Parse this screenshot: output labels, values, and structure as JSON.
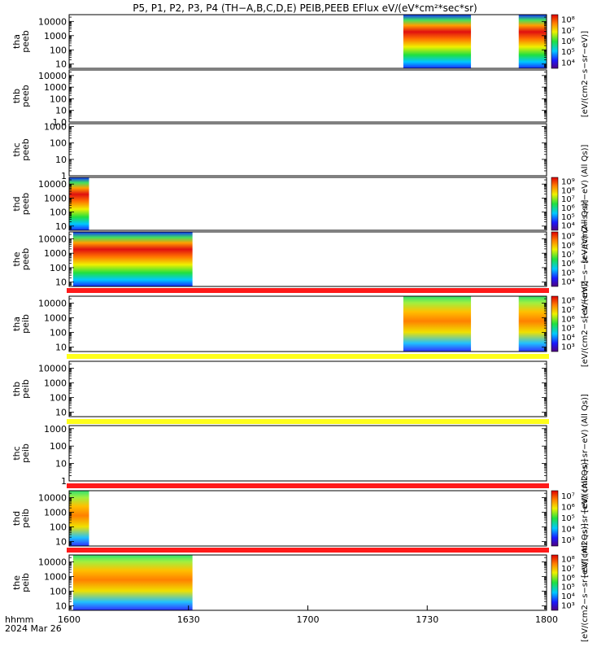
{
  "title": "P5, P1, P2, P3, P4 (TH−A,B,C,D,E) PEIB,PEEB EFlux eV/(eV*cm²*sec*sr)",
  "footer": {
    "hhmm": "hhmm",
    "date": "2024 Mar 26"
  },
  "colors": {
    "flag_red": "#ff1a1a",
    "flag_yellow": "#ffff1a"
  },
  "chart_data": {
    "type": "heatmap",
    "x_tick_labels": [
      "1600",
      "1630",
      "1700",
      "1730",
      "1800"
    ],
    "x_range": [
      "16:00",
      "18:00"
    ],
    "panels": [
      {
        "ylabel": [
          "tha",
          "peeb"
        ],
        "y_ticks": [
          "10",
          "100",
          "1000",
          "10000"
        ],
        "ylim": [
          5,
          30000
        ],
        "coverage": [
          [
            "17:24",
            "17:41"
          ],
          [
            "17:53",
            "18:00"
          ]
        ],
        "colorbar": {
          "labels": [
            "10⁴",
            "10⁵",
            "10⁶",
            "10⁷",
            "10⁸"
          ],
          "title": "[eV/(cm2−s−sr−eV)]"
        }
      },
      {
        "ylabel": [
          "thb",
          "peeb"
        ],
        "y_ticks": [
          "1.0",
          "10",
          "100",
          "1000",
          "10000"
        ],
        "ylim": [
          1,
          30000
        ],
        "coverage": []
      },
      {
        "ylabel": [
          "thc",
          "peeb"
        ],
        "y_ticks": [
          "1",
          "10",
          "100",
          "1000"
        ],
        "ylim": [
          1,
          1500
        ],
        "coverage": []
      },
      {
        "ylabel": [
          "thd",
          "peeb"
        ],
        "y_ticks": [
          "10",
          "100",
          "1000",
          "10000"
        ],
        "ylim": [
          5,
          30000
        ],
        "coverage": [
          [
            "16:00",
            "16:05"
          ]
        ],
        "colorbar": {
          "labels": [
            "10⁴",
            "10⁵",
            "10⁶",
            "10⁷",
            "10⁸",
            "10⁹"
          ],
          "title": "[eV/(cm2−s−sr−eV) (All Qs)]"
        }
      },
      {
        "ylabel": [
          "the",
          "peeb"
        ],
        "y_ticks": [
          "10",
          "100",
          "1000",
          "10000"
        ],
        "ylim": [
          5,
          30000
        ],
        "coverage": [
          [
            "16:01",
            "16:31"
          ]
        ],
        "flag": "red",
        "colorbar": {
          "labels": [
            "10⁴",
            "10⁵",
            "10⁶",
            "10⁷",
            "10⁸",
            "10⁹"
          ],
          "title": "[eV/(cm2−s−sr−eV) (All Qs)]"
        }
      },
      {
        "ylabel": [
          "tha",
          "peib"
        ],
        "y_ticks": [
          "10",
          "100",
          "1000",
          "10000"
        ],
        "ylim": [
          5,
          30000
        ],
        "coverage": [
          [
            "17:24",
            "17:41"
          ],
          [
            "17:53",
            "18:00"
          ]
        ],
        "flag": "yellow",
        "colorbar": {
          "labels": [
            "10³",
            "10⁴",
            "10⁵",
            "10⁶",
            "10⁷",
            "10⁸"
          ],
          "title": "[eV/(cm2−s−sr−eV)]"
        }
      },
      {
        "ylabel": [
          "thb",
          "peib"
        ],
        "y_ticks": [
          "10",
          "100",
          "1000",
          "10000"
        ],
        "ylim": [
          5,
          30000
        ],
        "coverage": [],
        "flag": "yellow"
      },
      {
        "ylabel": [
          "thc",
          "peib"
        ],
        "y_ticks": [
          "1",
          "10",
          "100",
          "1000"
        ],
        "ylim": [
          1,
          1500
        ],
        "coverage": [],
        "flag": "red",
        "colorbar": {
          "labels": [],
          "title": "[eV/(cm2−s−sr−eV) (All Qs)]"
        }
      },
      {
        "ylabel": [
          "thd",
          "peib"
        ],
        "y_ticks": [
          "10",
          "100",
          "1000",
          "10000"
        ],
        "ylim": [
          5,
          30000
        ],
        "coverage": [
          [
            "16:00",
            "16:05"
          ]
        ],
        "flag": "red",
        "colorbar": {
          "labels": [
            "10³",
            "10⁴",
            "10⁵",
            "10⁶",
            "10⁷"
          ],
          "title": "[eV/(cm2−s−sr−eV) (All Qs)]"
        }
      },
      {
        "ylabel": [
          "the",
          "peib"
        ],
        "y_ticks": [
          "10",
          "100",
          "1000",
          "10000"
        ],
        "ylim": [
          5,
          30000
        ],
        "coverage": [
          [
            "16:01",
            "16:31"
          ]
        ],
        "colorbar": {
          "labels": [
            "10³",
            "10⁴",
            "10⁵",
            "10⁶",
            "10⁷",
            "10⁸"
          ],
          "title": "[eV/(cm2−s−sr−eV) (All Qs)]"
        }
      }
    ]
  }
}
